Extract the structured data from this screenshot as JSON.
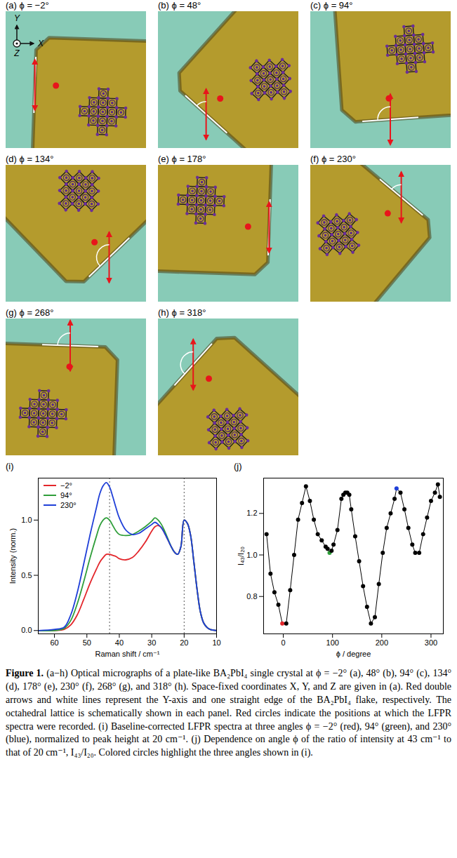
{
  "micrographs": [
    {
      "label": "(a) ϕ = −2°",
      "phi": -2,
      "axis_labels": {
        "x": "X",
        "y": "Y",
        "z": "Z"
      }
    },
    {
      "label": "(b) ϕ = 48°",
      "phi": 48
    },
    {
      "label": "(c) ϕ = 94°",
      "phi": 94
    },
    {
      "label": "(d) ϕ = 134°",
      "phi": 134
    },
    {
      "label": "(e) ϕ = 178°",
      "phi": 178
    },
    {
      "label": "(f) ϕ = 230°",
      "phi": 230
    },
    {
      "label": "(g) ϕ = 268°",
      "phi": 268
    },
    {
      "label": "(h) ϕ = 318°",
      "phi": 318
    }
  ],
  "chart_data": [
    {
      "panel": "(i)",
      "type": "line",
      "x": [
        65,
        60,
        57,
        55,
        53,
        51,
        49,
        47,
        46,
        45,
        44,
        43,
        42,
        41,
        40,
        38,
        36,
        34,
        32,
        30,
        29,
        28,
        27,
        26,
        25,
        24,
        23,
        22,
        21,
        20,
        19,
        18,
        17,
        16,
        15,
        14,
        13,
        12,
        10
      ],
      "series": [
        {
          "name": "−2°",
          "color": "#e3262b",
          "values": [
            0,
            0,
            0.01,
            0.05,
            0.14,
            0.28,
            0.43,
            0.56,
            0.62,
            0.66,
            0.69,
            0.69,
            0.68,
            0.67,
            0.65,
            0.64,
            0.66,
            0.72,
            0.8,
            0.9,
            0.94,
            0.95,
            0.93,
            0.88,
            0.82,
            0.76,
            0.71,
            0.69,
            0.76,
            1.0,
            0.97,
            0.86,
            0.62,
            0.37,
            0.17,
            0.07,
            0.03,
            0.01,
            0
          ]
        },
        {
          "name": "94°",
          "color": "#2f9e3a",
          "values": [
            0,
            0,
            0.02,
            0.09,
            0.24,
            0.44,
            0.66,
            0.86,
            0.95,
            1.0,
            1.02,
            1.0,
            0.95,
            0.9,
            0.87,
            0.86,
            0.87,
            0.9,
            0.94,
            0.99,
            1.02,
            1.0,
            0.96,
            0.9,
            0.83,
            0.76,
            0.71,
            0.69,
            0.76,
            1.0,
            0.97,
            0.86,
            0.62,
            0.37,
            0.17,
            0.07,
            0.03,
            0.01,
            0
          ]
        },
        {
          "name": "230°",
          "color": "#1f3fd8",
          "values": [
            0,
            0.01,
            0.03,
            0.14,
            0.34,
            0.6,
            0.87,
            1.12,
            1.24,
            1.31,
            1.34,
            1.3,
            1.21,
            1.11,
            1.02,
            0.91,
            0.87,
            0.88,
            0.92,
            0.96,
            0.98,
            0.96,
            0.93,
            0.88,
            0.82,
            0.76,
            0.71,
            0.69,
            0.76,
            1.0,
            0.97,
            0.86,
            0.62,
            0.37,
            0.17,
            0.07,
            0.03,
            0.01,
            0
          ]
        }
      ],
      "xlim": [
        65,
        10
      ],
      "xticks": [
        60,
        50,
        40,
        30,
        20,
        10
      ],
      "ylim": [
        -0.03,
        1.38
      ],
      "yticks": [
        {
          "value": 0,
          "label": "0.0"
        },
        {
          "value": 0.5,
          "label": "0.5"
        },
        {
          "value": 1,
          "label": "1.0"
        }
      ],
      "xlabel": "Raman shift / cm⁻¹",
      "ylabel": "Intensity (norm.)",
      "legend": "top-left",
      "vlines": [
        43,
        20
      ]
    },
    {
      "panel": "(j)",
      "type": "line",
      "marker": "circle",
      "color": "black",
      "x": [
        -34,
        -26,
        -18,
        -10,
        -2,
        6,
        14,
        22,
        30,
        38,
        46,
        54,
        62,
        70,
        78,
        86,
        90,
        94,
        98,
        102,
        110,
        118,
        122,
        126,
        130,
        134,
        138,
        146,
        154,
        162,
        170,
        178,
        186,
        194,
        202,
        210,
        218,
        226,
        230,
        238,
        246,
        254,
        262,
        268,
        276,
        284,
        292,
        300,
        308,
        314,
        318
      ],
      "values": [
        1.1,
        0.91,
        0.82,
        0.76,
        0.67,
        0.67,
        0.83,
        1.0,
        1.17,
        1.25,
        1.33,
        1.26,
        1.17,
        1.1,
        1.07,
        1.04,
        1.03,
        1.01,
        1.02,
        1.05,
        1.12,
        1.27,
        1.29,
        1.3,
        1.3,
        1.29,
        1.22,
        1.09,
        0.97,
        0.85,
        0.75,
        0.67,
        0.7,
        0.86,
        1.01,
        1.13,
        1.2,
        1.27,
        1.32,
        1.3,
        1.22,
        1.13,
        1.05,
        1.01,
        1.01,
        1.1,
        1.18,
        1.26,
        1.3,
        1.34,
        1.28
      ],
      "colors": [
        "black",
        "black",
        "black",
        "black",
        "#e3262b",
        "black",
        "black",
        "black",
        "black",
        "black",
        "black",
        "black",
        "black",
        "black",
        "black",
        "black",
        "black",
        "#2f9e3a",
        "black",
        "black",
        "black",
        "black",
        "black",
        "black",
        "black",
        "black",
        "black",
        "black",
        "black",
        "black",
        "black",
        "black",
        "black",
        "black",
        "black",
        "black",
        "black",
        "black",
        "#1f3fd8",
        "black",
        "black",
        "black",
        "black",
        "black",
        "black",
        "black",
        "black",
        "black",
        "black",
        "black",
        "black"
      ],
      "xlim": [
        -40,
        325
      ],
      "xticks": [
        0,
        100,
        200,
        300
      ],
      "ylim": [
        0.62,
        1.37
      ],
      "yticks": [
        0.8,
        {
          "value": 1,
          "label": "1.0"
        },
        1.2
      ],
      "xlabel": "ϕ / degree",
      "ylabel": "I₄₃/I₂₀"
    }
  ],
  "caption": {
    "label": "Figure 1.",
    "text": "(a−h) Optical micrographs of a plate-like BA₂PbI₄ single crystal at ϕ = −2° (a), 48° (b), 94° (c), 134° (d), 178° (e), 230° (f), 268° (g), and 318° (h). Space-fixed coordinates X, Y, and Z are given in (a). Red double arrows and white lines represent the Y-axis and one straight edge of the BA₂PbI₄ flake, respectively. The octahedral lattice is schematically shown in each panel. Red circles indicate the positions at which the LFPR spectra were recorded. (i) Baseline-corrected LFPR spectra at three angles ϕ = −2° (red), 94° (green), and 230° (blue), normalized to peak height at 20 cm⁻¹. (j) Dependence on angle ϕ of the ratio of intensity at 43 cm⁻¹ to that of 20 cm⁻¹, I₄₃/I₂₀. Colored circles highlight the three angles shown in (i)."
  }
}
